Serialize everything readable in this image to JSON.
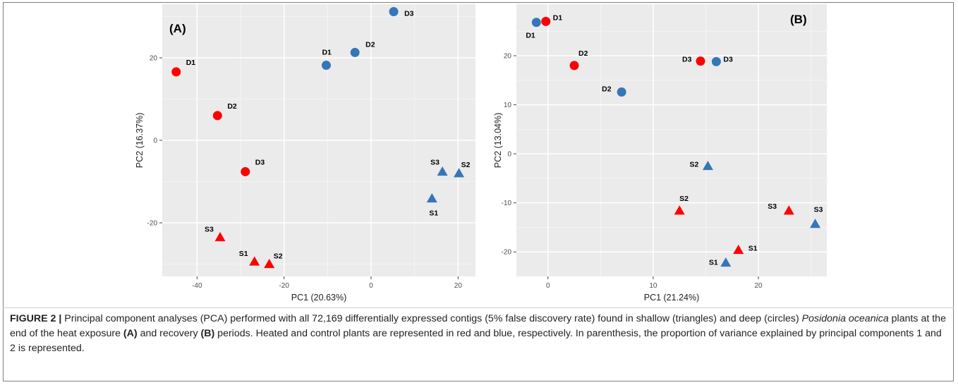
{
  "chart_data": [
    {
      "type": "scatter",
      "panel_label": "(A)",
      "xlabel": "PC1 (20.63%)",
      "ylabel": "PC2 (16.37%)",
      "xlim": [
        -48,
        24
      ],
      "ylim": [
        -33,
        33
      ],
      "xticks": [
        -40,
        -20,
        0,
        20
      ],
      "yticks": [
        -20,
        0,
        20
      ],
      "grid": true,
      "points": [
        {
          "label": "D1",
          "x": -44.8,
          "y": 16.6,
          "shape": "circle",
          "color": "#ff0000"
        },
        {
          "label": "D2",
          "x": -35.3,
          "y": 6.0,
          "shape": "circle",
          "color": "#ff0000"
        },
        {
          "label": "D3",
          "x": -28.9,
          "y": -7.6,
          "shape": "circle",
          "color": "#ff0000"
        },
        {
          "label": "D1",
          "x": -10.3,
          "y": 18.2,
          "shape": "circle",
          "color": "#3576b8"
        },
        {
          "label": "D2",
          "x": -3.7,
          "y": 21.3,
          "shape": "circle",
          "color": "#3576b8"
        },
        {
          "label": "D3",
          "x": 5.2,
          "y": 31.2,
          "shape": "circle",
          "color": "#3576b8"
        },
        {
          "label": "S3",
          "x": -34.7,
          "y": -23.5,
          "shape": "triangle",
          "color": "#ff0000"
        },
        {
          "label": "S1",
          "x": -26.8,
          "y": -29.4,
          "shape": "triangle",
          "color": "#ff0000"
        },
        {
          "label": "S2",
          "x": -23.4,
          "y": -30.0,
          "shape": "triangle",
          "color": "#ff0000"
        },
        {
          "label": "S1",
          "x": 14.0,
          "y": -14.1,
          "shape": "triangle",
          "color": "#3576b8"
        },
        {
          "label": "S3",
          "x": 16.4,
          "y": -7.6,
          "shape": "triangle",
          "color": "#3576b8"
        },
        {
          "label": "S2",
          "x": 20.2,
          "y": -8.0,
          "shape": "triangle",
          "color": "#3576b8"
        }
      ]
    },
    {
      "type": "scatter",
      "panel_label": "(B)",
      "xlabel": "PC1 (21.24%)",
      "ylabel": "PC2 (13.04%)",
      "xlim": [
        -3,
        26.5
      ],
      "ylim": [
        -25,
        30.5
      ],
      "xticks": [
        0,
        10,
        20
      ],
      "yticks": [
        -20,
        -10,
        0,
        10,
        20
      ],
      "grid": true,
      "points": [
        {
          "label": "D1",
          "x": -1.1,
          "y": 26.8,
          "shape": "circle",
          "color": "#3576b8"
        },
        {
          "label": "D1",
          "x": -0.2,
          "y": 27.0,
          "shape": "circle",
          "color": "#ff0000"
        },
        {
          "label": "D2",
          "x": 2.5,
          "y": 18.0,
          "shape": "circle",
          "color": "#ff0000"
        },
        {
          "label": "D2",
          "x": 7.0,
          "y": 12.6,
          "shape": "circle",
          "color": "#3576b8"
        },
        {
          "label": "D3",
          "x": 14.5,
          "y": 18.9,
          "shape": "circle",
          "color": "#ff0000"
        },
        {
          "label": "D3",
          "x": 16.0,
          "y": 18.8,
          "shape": "circle",
          "color": "#3576b8"
        },
        {
          "label": "S2",
          "x": 15.2,
          "y": -2.5,
          "shape": "triangle",
          "color": "#3576b8"
        },
        {
          "label": "S2",
          "x": 12.5,
          "y": -11.6,
          "shape": "triangle",
          "color": "#ff0000"
        },
        {
          "label": "S3",
          "x": 22.9,
          "y": -11.6,
          "shape": "triangle",
          "color": "#ff0000"
        },
        {
          "label": "S3",
          "x": 25.4,
          "y": -14.3,
          "shape": "triangle",
          "color": "#3576b8"
        },
        {
          "label": "S1",
          "x": 18.1,
          "y": -19.6,
          "shape": "triangle",
          "color": "#ff0000"
        },
        {
          "label": "S1",
          "x": 16.9,
          "y": -22.2,
          "shape": "triangle",
          "color": "#3576b8"
        }
      ]
    }
  ],
  "caption": {
    "figure_label": "FIGURE 2 |",
    "text_1": " Principal component analyses (PCA) performed with all 72,169 differentially expressed contigs (5% false discovery rate) found in shallow (triangles) and deep (circles) ",
    "species": "Posidonia oceanica",
    "text_2": " plants at the end of the heat exposure ",
    "ref_a": "(A)",
    "text_3": " and recovery ",
    "ref_b": "(B)",
    "text_4": " periods. Heated and control plants are represented in red and blue, respectively. In parenthesis, the proportion of variance explained by principal components 1 and 2 is represented."
  }
}
